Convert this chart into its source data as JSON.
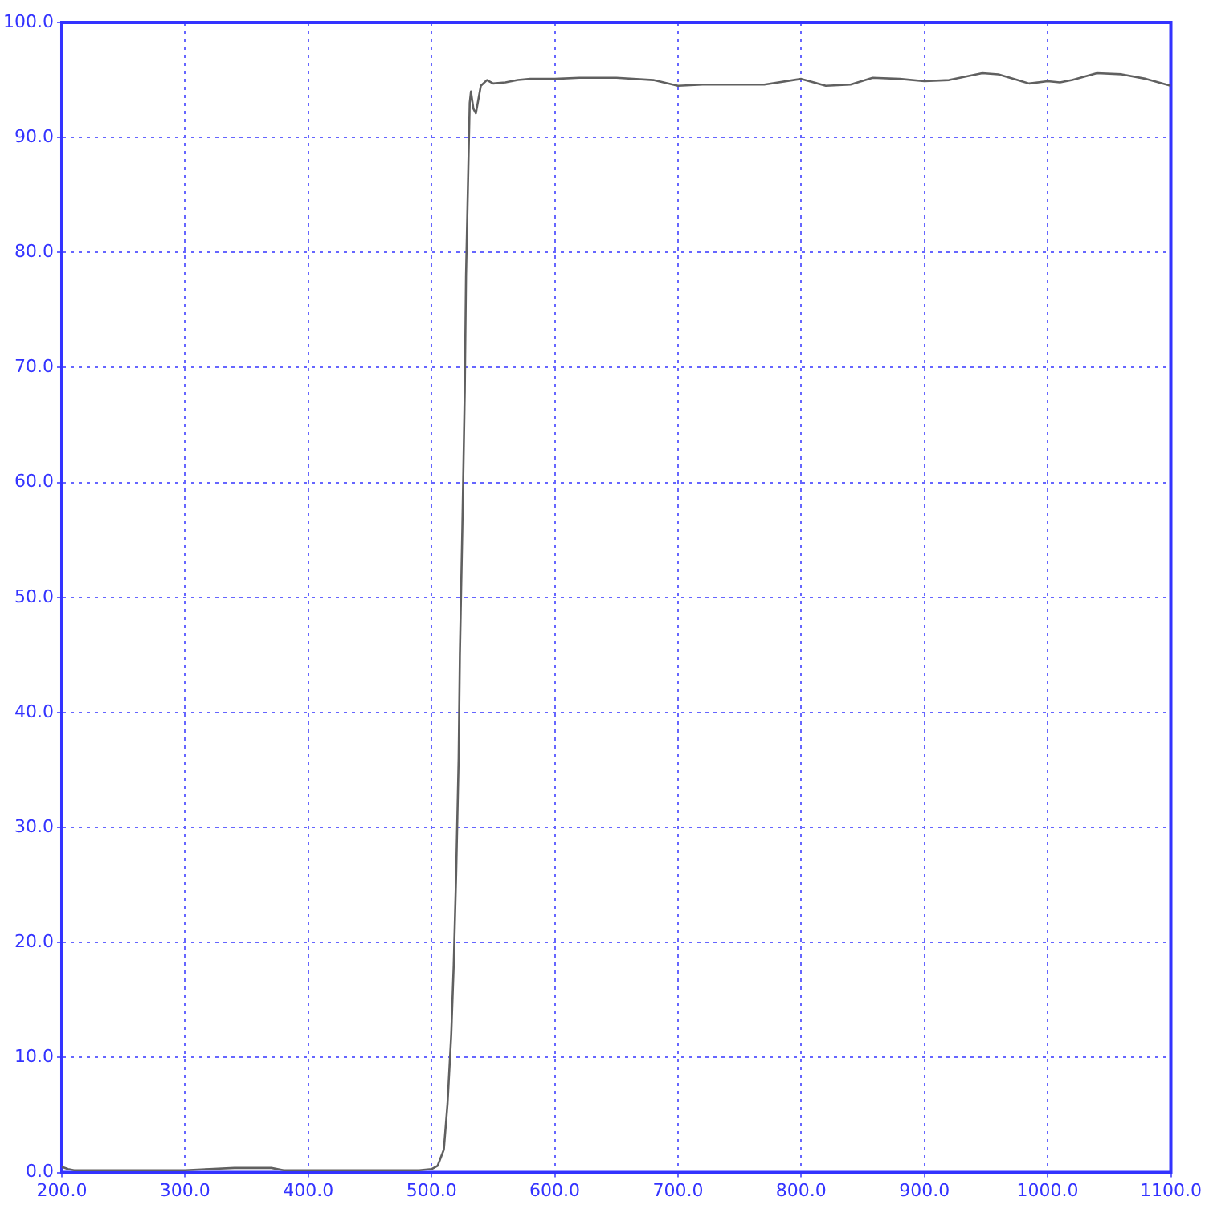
{
  "chart_data": {
    "type": "line",
    "x": [
      200,
      205,
      210,
      220,
      250,
      290,
      300,
      320,
      340,
      350,
      370,
      380,
      400,
      450,
      490,
      500,
      505,
      510,
      513,
      516,
      518,
      520,
      522,
      523,
      525,
      527,
      528,
      530,
      531,
      532,
      534,
      536,
      540,
      545,
      550,
      560,
      570,
      580,
      600,
      620,
      650,
      680,
      700,
      720,
      750,
      770,
      800,
      820,
      840,
      858,
      880,
      900,
      920,
      947,
      960,
      985,
      1000,
      1010,
      1020,
      1040,
      1060,
      1080,
      1100
    ],
    "series": [
      {
        "color": "#606060",
        "values": [
          0.5,
          0.3,
          0.2,
          0.2,
          0.2,
          0.2,
          0.2,
          0.3,
          0.4,
          0.4,
          0.4,
          0.2,
          0.2,
          0.2,
          0.2,
          0.3,
          0.6,
          2,
          6,
          12,
          18,
          26,
          36,
          45,
          56,
          68,
          78,
          88,
          93,
          94,
          92.5,
          92.1,
          94.5,
          95,
          94.7,
          94.8,
          95,
          95.1,
          95.1,
          95.2,
          95.2,
          95,
          94.5,
          94.6,
          94.6,
          94.6,
          95.1,
          94.5,
          94.6,
          95.2,
          95.1,
          94.9,
          95,
          95.6,
          95.5,
          94.7,
          94.9,
          94.8,
          95,
          95.6,
          95.5,
          95.1,
          94.5
        ]
      }
    ],
    "xlim": [
      200,
      1100
    ],
    "ylim": [
      0,
      100
    ],
    "xticks": [
      {
        "value": 200,
        "label": "200.0"
      },
      {
        "value": 300,
        "label": "300.0"
      },
      {
        "value": 400,
        "label": "400.0"
      },
      {
        "value": 500,
        "label": "500.0"
      },
      {
        "value": 600,
        "label": "600.0"
      },
      {
        "value": 700,
        "label": "700.0"
      },
      {
        "value": 800,
        "label": "800.0"
      },
      {
        "value": 900,
        "label": "900.0"
      },
      {
        "value": 1000,
        "label": "1000.0"
      },
      {
        "value": 1100,
        "label": "1100.0"
      }
    ],
    "yticks": [
      {
        "value": 0,
        "label": "0.0"
      },
      {
        "value": 10,
        "label": "10.0"
      },
      {
        "value": 20,
        "label": "20.0"
      },
      {
        "value": 30,
        "label": "30.0"
      },
      {
        "value": 40,
        "label": "40.0"
      },
      {
        "value": 50,
        "label": "50.0"
      },
      {
        "value": 60,
        "label": "60.0"
      },
      {
        "value": 70,
        "label": "70.0"
      },
      {
        "value": 80,
        "label": "80.0"
      },
      {
        "value": 90,
        "label": "90.0"
      },
      {
        "value": 100,
        "label": "100.0"
      }
    ],
    "grid": true,
    "legend": false,
    "marker": "none",
    "line_style": "solid"
  }
}
